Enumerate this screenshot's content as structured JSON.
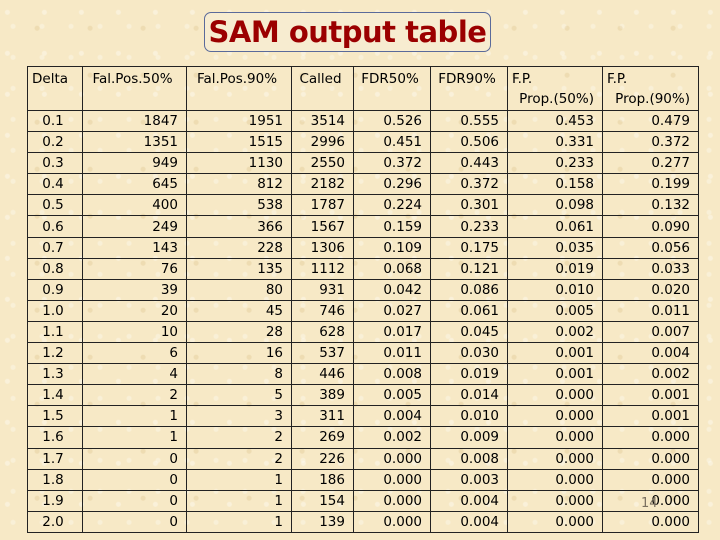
{
  "title": "SAM output table",
  "page_number": "14",
  "table": {
    "headers": [
      {
        "line1": "Delta",
        "line2": ""
      },
      {
        "line1": "Fal.Pos.50%",
        "line2": ""
      },
      {
        "line1": "Fal.Pos.90%",
        "line2": ""
      },
      {
        "line1": "Called",
        "line2": ""
      },
      {
        "line1": "FDR50%",
        "line2": ""
      },
      {
        "line1": "FDR90%",
        "line2": ""
      },
      {
        "line1": "F.P.",
        "line2": "Prop.(50%)"
      },
      {
        "line1": "F.P.",
        "line2": "Prop.(90%)"
      }
    ],
    "rows": [
      [
        "0.1",
        "1847",
        "1951",
        "3514",
        "0.526",
        "0.555",
        "0.453",
        "0.479"
      ],
      [
        "0.2",
        "1351",
        "1515",
        "2996",
        "0.451",
        "0.506",
        "0.331",
        "0.372"
      ],
      [
        "0.3",
        "949",
        "1130",
        "2550",
        "0.372",
        "0.443",
        "0.233",
        "0.277"
      ],
      [
        "0.4",
        "645",
        "812",
        "2182",
        "0.296",
        "0.372",
        "0.158",
        "0.199"
      ],
      [
        "0.5",
        "400",
        "538",
        "1787",
        "0.224",
        "0.301",
        "0.098",
        "0.132"
      ],
      [
        "0.6",
        "249",
        "366",
        "1567",
        "0.159",
        "0.233",
        "0.061",
        "0.090"
      ],
      [
        "0.7",
        "143",
        "228",
        "1306",
        "0.109",
        "0.175",
        "0.035",
        "0.056"
      ],
      [
        "0.8",
        "76",
        "135",
        "1112",
        "0.068",
        "0.121",
        "0.019",
        "0.033"
      ],
      [
        "0.9",
        "39",
        "80",
        "931",
        "0.042",
        "0.086",
        "0.010",
        "0.020"
      ],
      [
        "1.0",
        "20",
        "45",
        "746",
        "0.027",
        "0.061",
        "0.005",
        "0.011"
      ],
      [
        "1.1",
        "10",
        "28",
        "628",
        "0.017",
        "0.045",
        "0.002",
        "0.007"
      ],
      [
        "1.2",
        "6",
        "16",
        "537",
        "0.011",
        "0.030",
        "0.001",
        "0.004"
      ],
      [
        "1.3",
        "4",
        "8",
        "446",
        "0.008",
        "0.019",
        "0.001",
        "0.002"
      ],
      [
        "1.4",
        "2",
        "5",
        "389",
        "0.005",
        "0.014",
        "0.000",
        "0.001"
      ],
      [
        "1.5",
        "1",
        "3",
        "311",
        "0.004",
        "0.010",
        "0.000",
        "0.001"
      ],
      [
        "1.6",
        "1",
        "2",
        "269",
        "0.002",
        "0.009",
        "0.000",
        "0.000"
      ],
      [
        "1.7",
        "0",
        "2",
        "226",
        "0.000",
        "0.008",
        "0.000",
        "0.000"
      ],
      [
        "1.8",
        "0",
        "1",
        "186",
        "0.000",
        "0.003",
        "0.000",
        "0.000"
      ],
      [
        "1.9",
        "0",
        "1",
        "154",
        "0.000",
        "0.004",
        "0.000",
        "0.000"
      ],
      [
        "2.0",
        "0",
        "1",
        "139",
        "0.000",
        "0.004",
        "0.000",
        "0.000"
      ]
    ]
  },
  "colors": {
    "title_text": "#9b0000",
    "background": "#f7e9c6",
    "title_border": "#5a6a9a"
  }
}
